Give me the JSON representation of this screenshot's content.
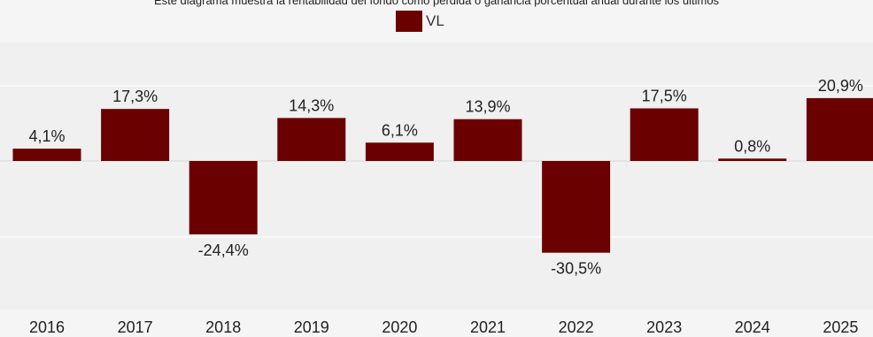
{
  "subtitle": "Este diagrama muestra la rentabilidad del fondo como pérdida o ganancia porcentual anual durante los últimos",
  "legend": {
    "label": "VL",
    "color": "#6b0000"
  },
  "colors": {
    "bar": "#6b0000",
    "background": "#f5f5f5",
    "grid": "#ffffff"
  },
  "chart_data": {
    "type": "bar",
    "categories": [
      "2016",
      "2017",
      "2018",
      "2019",
      "2020",
      "2021",
      "2022",
      "2023",
      "2024",
      "2025"
    ],
    "series": [
      {
        "name": "VL",
        "values": [
          4.1,
          17.3,
          -24.4,
          14.3,
          6.1,
          13.9,
          -30.5,
          17.5,
          0.8,
          20.9
        ]
      }
    ],
    "data_labels": [
      "4,1%",
      "17,3%",
      "-24,4%",
      "14,3%",
      "6,1%",
      "13,9%",
      "-30,5%",
      "17,5%",
      "0,8%",
      "20,9%"
    ],
    "legend_position": "top-center",
    "grid": true
  }
}
